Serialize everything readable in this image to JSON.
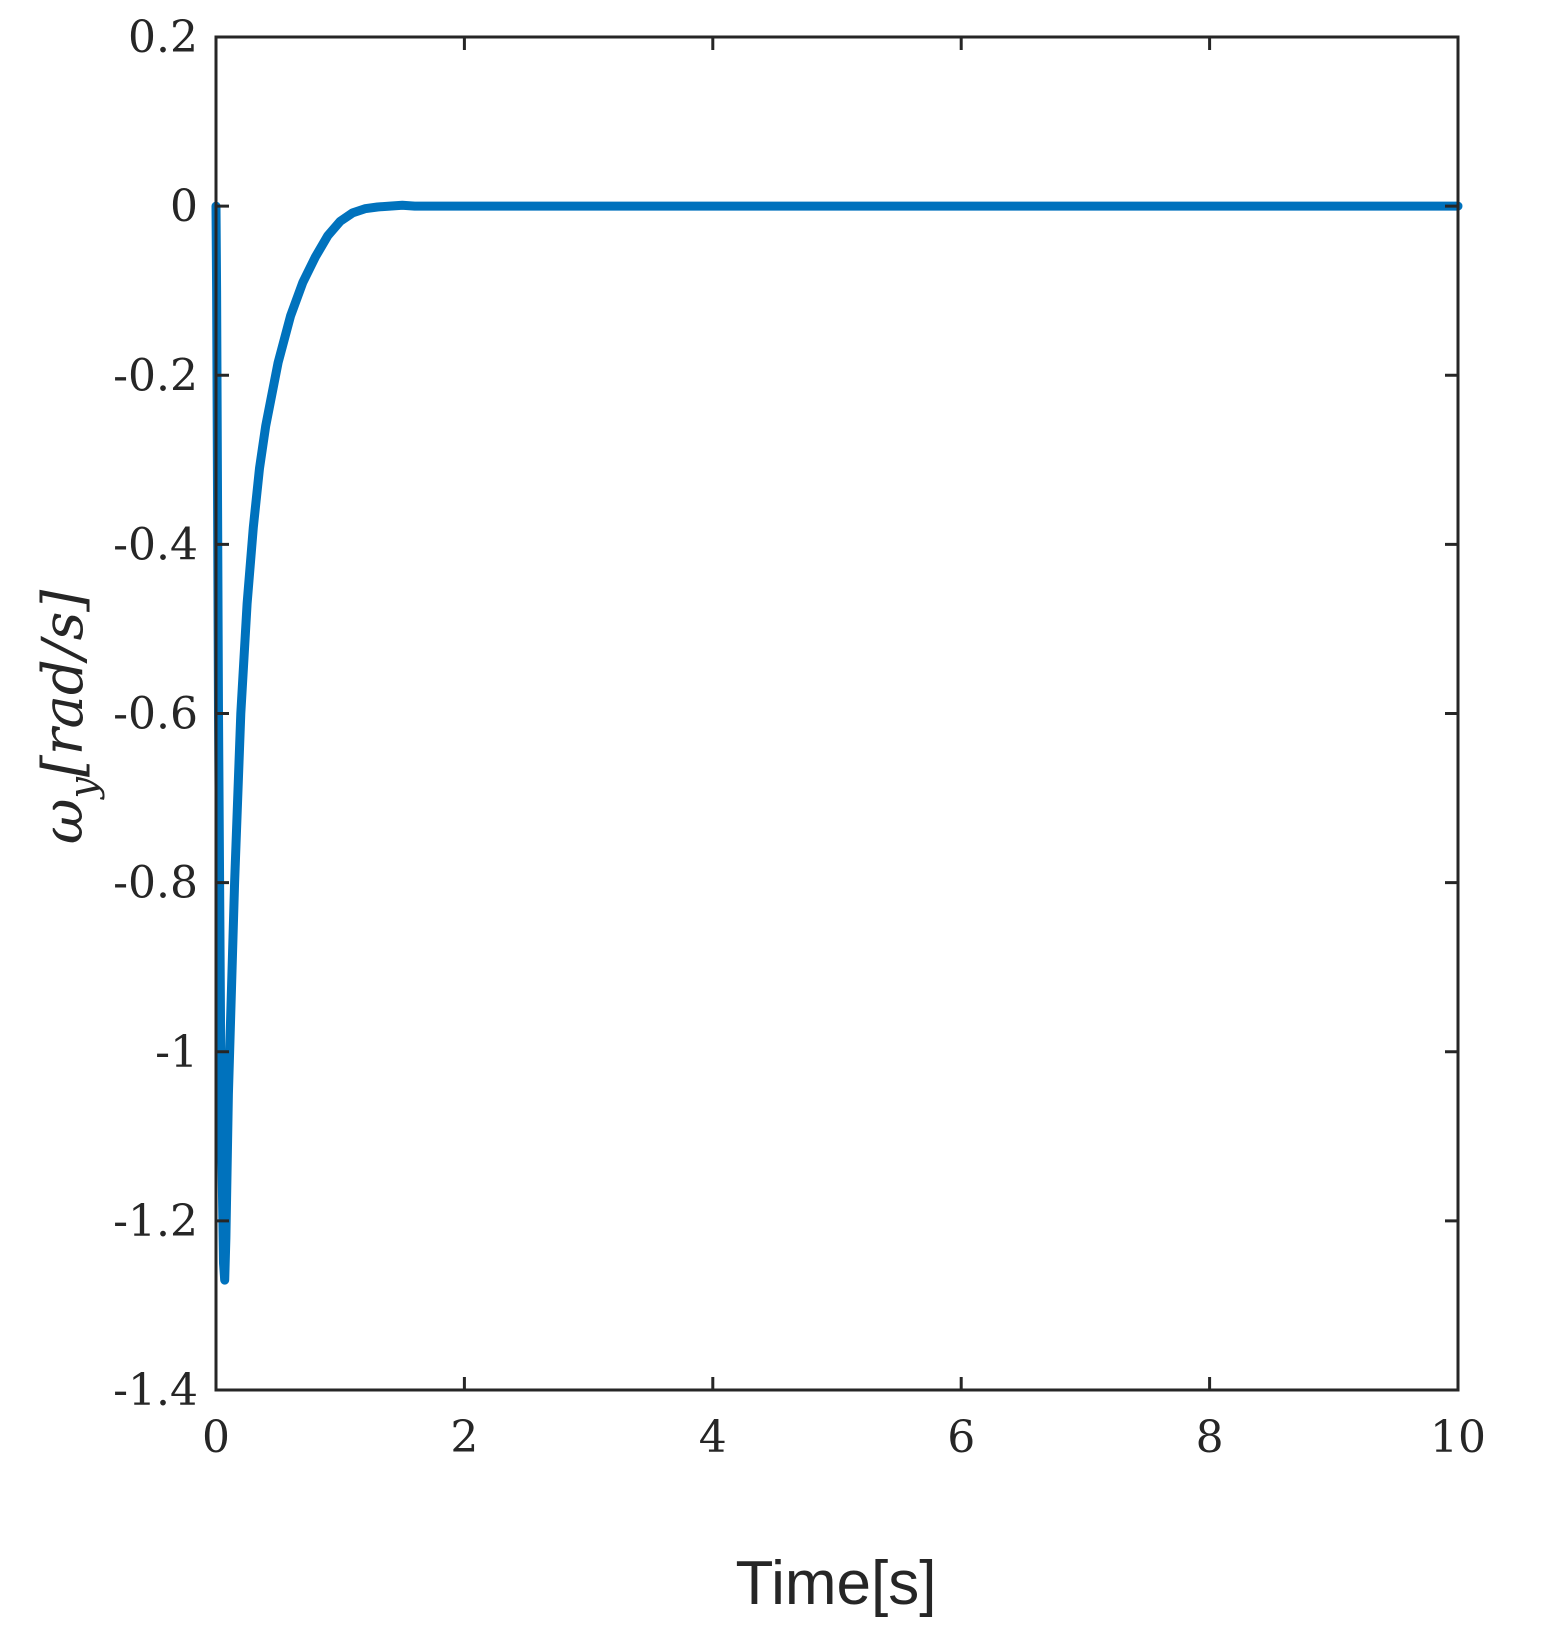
{
  "chart_data": {
    "type": "line",
    "title": "",
    "xlabel": "Time[s]",
    "ylabel": {
      "symbol": "ω",
      "subscript": "y",
      "unit": "[rad/s]"
    },
    "xlim": [
      0,
      10
    ],
    "ylim": [
      -1.4,
      0.2
    ],
    "xticks": [
      0,
      2,
      4,
      6,
      8,
      10
    ],
    "xtick_labels": [
      "0",
      "2",
      "4",
      "6",
      "8",
      "10"
    ],
    "yticks": [
      0.2,
      0,
      -0.2,
      -0.4,
      -0.6,
      -0.8,
      -1,
      -1.2,
      -1.4
    ],
    "ytick_labels": [
      "0.2",
      "0",
      "-0.2",
      "-0.4",
      "-0.6",
      "-0.8",
      "-1",
      "-1.2",
      "-1.4"
    ],
    "grid": false,
    "legend": "none",
    "colors": {
      "series": "#0072BD",
      "axes": "#262626"
    },
    "series": [
      {
        "x": [
          0,
          0.005,
          0.02,
          0.04,
          0.06,
          0.07,
          0.08,
          0.1,
          0.15,
          0.2,
          0.25,
          0.3,
          0.35,
          0.4,
          0.5,
          0.6,
          0.7,
          0.8,
          0.9,
          1.0,
          1.1,
          1.2,
          1.3,
          1.4,
          1.5,
          1.6,
          1.8,
          2.0,
          2.5,
          3.0,
          3.5,
          4.0,
          4.5,
          5.0,
          5.5,
          6.0,
          6.5,
          7.0,
          7.5,
          8.0,
          8.5,
          9.0,
          9.5,
          10.0
        ],
        "y": [
          0,
          -0.1,
          -0.6,
          -1.05,
          -1.25,
          -1.27,
          -1.22,
          -1.05,
          -0.8,
          -0.6,
          -0.47,
          -0.38,
          -0.31,
          -0.26,
          -0.185,
          -0.13,
          -0.09,
          -0.06,
          -0.035,
          -0.018,
          -0.008,
          -0.003,
          -0.001,
          0.0,
          0.001,
          0.0,
          0.0,
          0.0,
          0.0,
          0.0,
          0.0,
          0.0,
          0.0,
          0.0,
          0.0,
          0.0,
          0.0,
          0.0,
          0.0,
          0.0,
          0.0,
          0.0,
          0.0,
          0.0
        ]
      }
    ]
  }
}
